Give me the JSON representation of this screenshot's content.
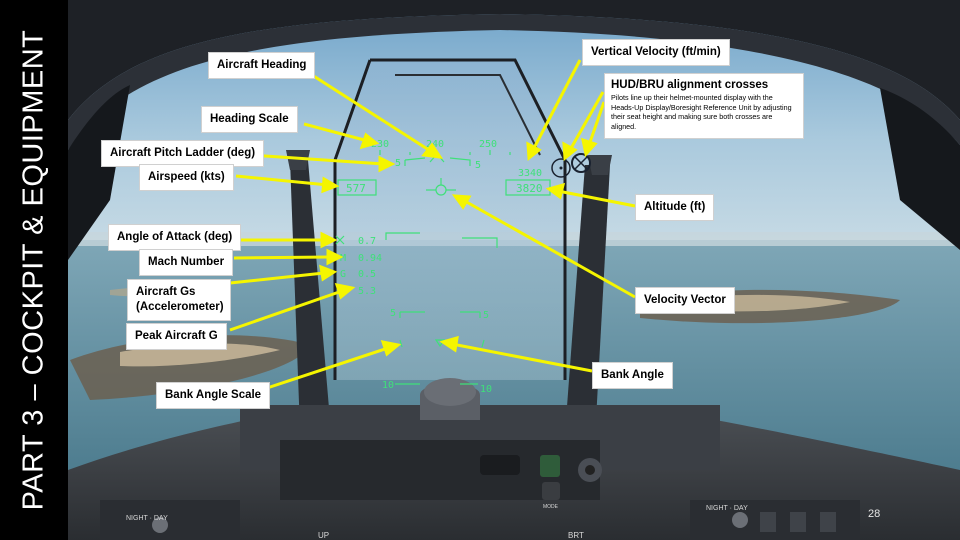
{
  "slide": {
    "side_title": "PART 3 – COCKPIT & EQUIPMENT",
    "page_number": "28"
  },
  "callouts": {
    "aircraft_heading": "Aircraft Heading",
    "heading_scale": "Heading Scale",
    "pitch_ladder": "Aircraft Pitch Ladder (deg)",
    "airspeed": "Airspeed (kts)",
    "angle_of_attack": "Angle of Attack (deg)",
    "mach_number": "Mach Number",
    "aircraft_gs": "Aircraft Gs (Accelerometer)",
    "peak_g": "Peak Aircraft G",
    "bank_angle_scale": "Bank Angle Scale",
    "vertical_velocity": "Vertical Velocity (ft/min)",
    "altitude": "Altitude (ft)",
    "velocity_vector": "Velocity Vector",
    "bank_angle": "Bank Angle",
    "hud_bru_title": "HUD/BRU alignment crosses",
    "hud_bru_description": "Pilots line up their helmet-mounted display with the Heads-Up Display/Boresight Reference Unit by adjusting their seat height and making sure both crosses are aligned."
  },
  "hud": {
    "heading_left": "230",
    "heading_center": "240",
    "heading_right": "250",
    "pitch_left": "5",
    "pitch_right": "5",
    "airspeed": "577",
    "vertical_velocity": "3340",
    "altitude": "3820",
    "aoa_symbol": "α",
    "aoa_value": "0.7",
    "mach_symbol": "M",
    "mach_value": "0.94",
    "g_symbol": "G",
    "g_value": "0.5",
    "peak_g_value": "5.3",
    "lower_pitch_left": "5",
    "lower_pitch_right": "5",
    "bottom_pitch_left": "10",
    "bottom_pitch_right": "10"
  },
  "cockpit_panel": {
    "night_day_left": "NIGHT  DAY\nOFF",
    "night_day_right": "NIGHT  DAY\nOFF",
    "brt_label": "BRT",
    "up_label": "UP",
    "mode_label": "MODE"
  },
  "colors": {
    "hud_green": "#3fe07a",
    "callout_arrow": "#f5f500",
    "sidebar": "#000000"
  }
}
